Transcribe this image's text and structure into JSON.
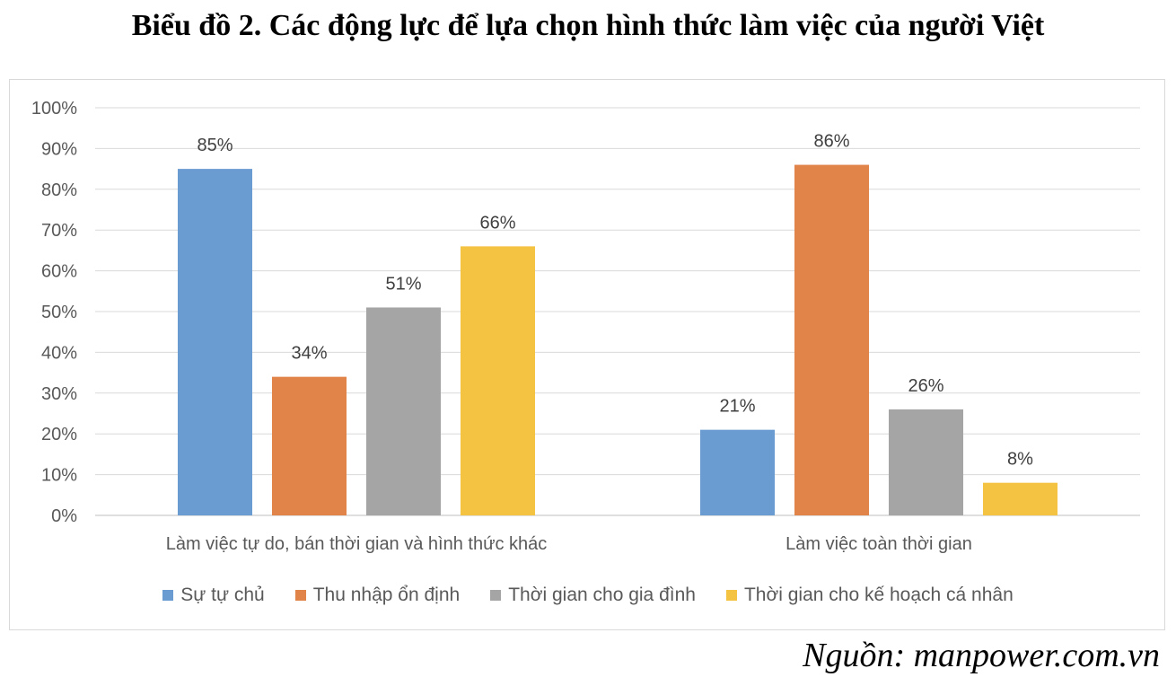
{
  "title": "Biểu đồ 2. Các động lực để lựa chọn hình thức làm việc của người Việt",
  "source": "Nguồn: manpower.com.vn",
  "chart_data": {
    "type": "bar",
    "categories": [
      "Làm việc tự do, bán thời gian và hình thức khác",
      "Làm việc toàn thời gian"
    ],
    "series": [
      {
        "name": "Sự tự chủ",
        "values": [
          85,
          21
        ],
        "color": "#6a9bd1"
      },
      {
        "name": "Thu nhập ổn định",
        "values": [
          34,
          86
        ],
        "color": "#e0844a"
      },
      {
        "name": "Thời gian cho gia đình",
        "values": [
          51,
          26
        ],
        "color": "#a5a5a5"
      },
      {
        "name": "Thời gian cho kế hoạch cá nhân",
        "values": [
          66,
          8
        ],
        "color": "#f4c342"
      }
    ],
    "ylim": [
      0,
      100
    ],
    "yticks": [
      "0%",
      "10%",
      "20%",
      "30%",
      "40%",
      "50%",
      "60%",
      "70%",
      "80%",
      "90%",
      "100%"
    ],
    "data_labels": [
      [
        "85%",
        "21%"
      ],
      [
        "34%",
        "86%"
      ],
      [
        "51%",
        "26%"
      ],
      [
        "66%",
        "8%"
      ]
    ],
    "grid": true,
    "legend_position": "bottom"
  }
}
